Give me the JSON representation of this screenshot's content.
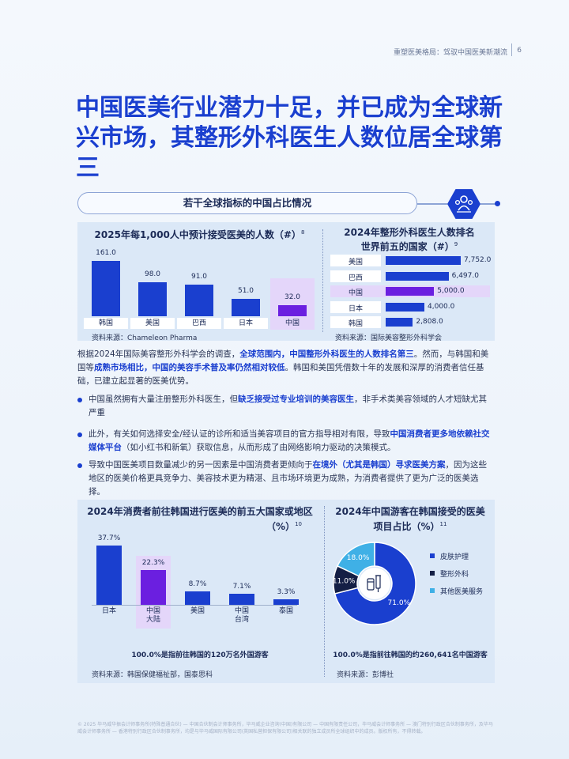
{
  "header": {
    "breadcrumb": "重塑医美格局：驾驭中国医美新潮流",
    "page_number": "6"
  },
  "title": "中国医美行业潜力十足，并已成为全球新兴市场，其整形外科医生人数位居全球第三",
  "section_pill": "若干全球指标的中国占比情况",
  "chart1": {
    "title": "2025年每1,000人中预计接受医美的人数（#）",
    "ref": "8",
    "source": "资料来源：Chameleon Pharma"
  },
  "chart2": {
    "title_line1": "2024年整形外科医生人数排名",
    "title_line2": "世界前五的国家（#）",
    "ref": "9",
    "source": "资料来源：国际美容整形外科学会"
  },
  "chart3": {
    "title_line1": "2024年消费者前往韩国进行医美的前五大国家或地区",
    "title_line2": "（%）",
    "ref": "10",
    "note": "100.0%是指前往韩国的120万名外国游客",
    "source": "资料来源：韩国保健福祉部，国泰思科"
  },
  "chart4": {
    "title_line1": "2024年中国游客在韩国接受的医美",
    "title_line2": "项目占比（%）",
    "ref": "11",
    "note": "100.0%是指前往韩国的约260,641名中国游客",
    "source": "资料来源：彭博社"
  },
  "chart_data": [
    {
      "type": "bar",
      "categories": [
        "韩国",
        "美国",
        "巴西",
        "日本",
        "中国"
      ],
      "values": [
        161.0,
        98.0,
        91.0,
        51.0,
        32.0
      ],
      "value_labels": [
        "161.0",
        "98.0",
        "91.0",
        "51.0",
        "32.0"
      ],
      "highlight": "中国",
      "colors": {
        "default": "#1a3fcf",
        "highlight": "#6b1fe0"
      }
    },
    {
      "type": "bar",
      "orientation": "horizontal",
      "categories": [
        "美国",
        "巴西",
        "中国",
        "日本",
        "韩国"
      ],
      "values": [
        7752.0,
        6497.0,
        5000.0,
        4000.0,
        2808.0
      ],
      "value_labels": [
        "7,752.0",
        "6,497.0",
        "5,000.0",
        "4,000.0",
        "2,808.0"
      ],
      "highlight": "中国"
    },
    {
      "type": "bar",
      "categories": [
        "日本",
        "中国\n大陆",
        "美国",
        "中国\n台湾",
        "泰国"
      ],
      "values": [
        37.7,
        22.3,
        8.7,
        7.1,
        3.3
      ],
      "value_labels": [
        "37.7%",
        "22.3%",
        "8.7%",
        "7.1%",
        "3.3%"
      ],
      "highlight": "中国\n大陆"
    },
    {
      "type": "pie",
      "series": [
        {
          "name": "皮肤护理",
          "value": 71.0,
          "label": "71.0%",
          "color": "#1a3fcf"
        },
        {
          "name": "整形外科",
          "value": 11.0,
          "label": "11.0%",
          "color": "#141f45"
        },
        {
          "name": "其他医美服务",
          "value": 18.0,
          "label": "18.0%",
          "color": "#3fb0e6"
        }
      ]
    }
  ],
  "paragraph1": {
    "t1": "根据2024年国际美容整形外科学会的调查，",
    "b1": "全球范围内，中国整形外科医生的人数排名第三",
    "t2": "。然而，与韩国和美国等",
    "b2": "成熟市场相比，中国的美容手术普及率仍然相对较低",
    "t3": "。韩国和美国凭借数十年的发展和深厚的消费者信任基础，已建立起显著的医美优势。"
  },
  "bullet1": {
    "t1": "中国虽然拥有大量注册整形外科医生，但",
    "b1": "缺乏接受过专业培训的美容医生",
    "t2": "，非手术类美容领域的人才短缺尤其严重"
  },
  "bullet2": {
    "t1": "此外，有关如何选择安全/经认证的诊所和适当美容项目的官方指导相对有限，导致",
    "b1": "中国消费者更多地依赖社交媒体平台",
    "t2": "（如小红书和新氧）获取信息，从而形成了由网络影响力驱动的决策模式。"
  },
  "bullet3": {
    "t1": "导致中国医美项目数量减少的另一因素是中国消费者更倾向于",
    "b1": "在境外（尤其是韩国）寻求医美方案",
    "t2": "，因为这些地区的医美价格更具竞争力、美容技术更为精湛、且市场环境更为成熟，为消费者提供了更为广泛的医美选择。"
  },
  "footer": "© 2025 毕马威华振会计师事务所(特殊普通合伙) — 中国合伙制会计师事务所，毕马威企业咨询(中国)有限公司 — 中国有限责任公司，毕马威会计师事务所 — 澳门特别行政区合伙制事务所，及毕马威会计师事务所 — 香港特别行政区合伙制事务所，均是与毕马威国际有限公司(英国私营担保有限公司)相关联的独立成员所全球组织中的成员。版权所有，不得转载。"
}
